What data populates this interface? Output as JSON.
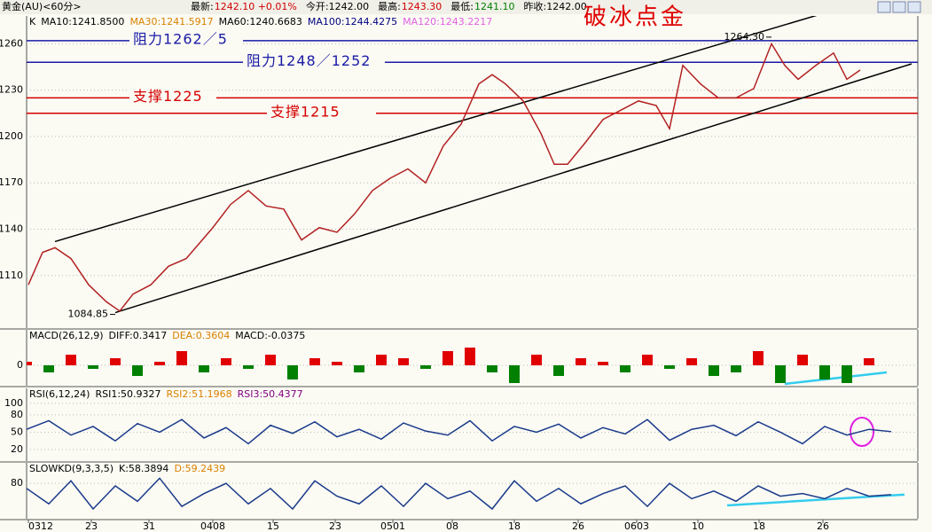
{
  "header": {
    "symbol": "黄金(AU)<60分>",
    "items": [
      {
        "text": "最新:",
        "color": "#000000"
      },
      {
        "text": "1242.10 +0.01%",
        "color": "#d00000"
      },
      {
        "text": "今开:1242.00",
        "color": "#000000"
      },
      {
        "text": "最高:",
        "color": "#000000"
      },
      {
        "text": "1243.30",
        "color": "#d00000"
      },
      {
        "text": "最低:",
        "color": "#000000"
      },
      {
        "text": "1241.10",
        "color": "#008000"
      },
      {
        "text": "昨收:1242.00",
        "color": "#000000"
      }
    ]
  },
  "chart_data": [
    {
      "type": "line",
      "title": "破冰点金",
      "color": "#b22222",
      "labels": [
        {
          "text": "K",
          "color": "#000000"
        },
        {
          "text": "MA10:1241.8500",
          "color": "#000000"
        },
        {
          "text": "MA30:1241.5917",
          "color": "#d98000"
        },
        {
          "text": "MA60:1240.6683",
          "color": "#000000"
        },
        {
          "text": "MA100:1244.4275",
          "color": "#000080"
        },
        {
          "text": "MA120:1243.2217",
          "color": "#e060e0"
        }
      ],
      "x": [
        2,
        18,
        32,
        50,
        70,
        90,
        105,
        120,
        140,
        160,
        180,
        210,
        230,
        250,
        270,
        290,
        310,
        330,
        350,
        370,
        390,
        410,
        430,
        450,
        470,
        490,
        510,
        525,
        540,
        560,
        580,
        595,
        610,
        630,
        650,
        670,
        690,
        710,
        725,
        740,
        760,
        780,
        800,
        820,
        840,
        855,
        870,
        890,
        910,
        925,
        940
      ],
      "values": [
        1104,
        1125,
        1128,
        1121,
        1104,
        1093,
        1087,
        1098,
        1104,
        1116,
        1121,
        1141,
        1156,
        1165,
        1155,
        1153,
        1133,
        1141,
        1138,
        1150,
        1165,
        1173,
        1179,
        1170,
        1194,
        1208,
        1234,
        1240,
        1234,
        1223,
        1202,
        1182,
        1182,
        1196,
        1211,
        1217,
        1223,
        1220,
        1205,
        1246,
        1234,
        1225,
        1225,
        1231,
        1260,
        1246,
        1237,
        1246,
        1254,
        1237,
        1243
      ],
      "xlim": [
        0,
        1000
      ],
      "ylim": [
        1076,
        1278
      ],
      "yticks": [
        1110,
        1140,
        1170,
        1200,
        1230,
        1260
      ],
      "grid": true,
      "xticks": [
        {
          "value": 2,
          "label": "0312"
        },
        {
          "value": 73,
          "label": "23"
        },
        {
          "value": 138,
          "label": "31"
        },
        {
          "value": 210,
          "label": "0408"
        },
        {
          "value": 278,
          "label": "15"
        },
        {
          "value": 348,
          "label": "23"
        },
        {
          "value": 413,
          "label": "0501"
        },
        {
          "value": 480,
          "label": "08"
        },
        {
          "value": 550,
          "label": "18"
        },
        {
          "value": 622,
          "label": "26"
        },
        {
          "value": 688,
          "label": "0603"
        },
        {
          "value": 757,
          "label": "10"
        },
        {
          "value": 826,
          "label": "18"
        },
        {
          "value": 898,
          "label": "26"
        }
      ],
      "hlines": [
        {
          "value": 1262,
          "label": "阻力1262／5",
          "color": "#1a1aa6"
        },
        {
          "value": 1248,
          "label": "阻力1248／1252",
          "color": "#1a1aa6"
        },
        {
          "value": 1225,
          "label": "支撑1225",
          "color": "#d40000"
        },
        {
          "value": 1215,
          "label": "支撑1215",
          "color": "#d40000"
        }
      ],
      "trendlines": [
        {
          "x": [
            32,
            918
          ],
          "values": [
            1132,
            1283
          ],
          "color": "#000000"
        },
        {
          "x": [
            100,
            998
          ],
          "values": [
            1086,
            1247
          ],
          "color": "#000000"
        }
      ],
      "annotations": [
        {
          "x": 840,
          "value": 1264.3,
          "label": "1264.30"
        },
        {
          "x": 100,
          "value": 1084.85,
          "label": "1084.85"
        }
      ]
    },
    {
      "type": "bar",
      "up_color": "#e00000",
      "down_color": "#008000",
      "labels": [
        {
          "text": "MACD(26,12,9)",
          "color": "#000000"
        },
        {
          "text": "DIFF:0.3417",
          "color": "#000000"
        },
        {
          "text": "DEA:0.3604",
          "color": "#d98000"
        },
        {
          "text": "MACD:-0.0375",
          "color": "#000000"
        }
      ],
      "x": [
        0,
        25,
        50,
        75,
        100,
        125,
        150,
        175,
        200,
        225,
        250,
        275,
        300,
        325,
        350,
        375,
        400,
        425,
        450,
        475,
        500,
        525,
        550,
        575,
        600,
        625,
        650,
        675,
        700,
        725,
        750,
        775,
        800,
        825,
        850,
        875,
        900,
        925,
        950,
        975
      ],
      "values": [
        1,
        -2,
        3,
        -1,
        2,
        -3,
        1,
        4,
        -2,
        2,
        -1,
        3,
        -4,
        2,
        1,
        -2,
        3,
        2,
        -1,
        4,
        5,
        -2,
        -5,
        3,
        -3,
        2,
        1,
        -2,
        3,
        -1,
        2,
        -3,
        -2,
        4,
        -5,
        3,
        -4,
        -5,
        2,
        0
      ],
      "xlim": [
        0,
        1000
      ],
      "ylim": [
        -5.75,
        10
      ],
      "yticks": [
        0
      ],
      "grid": true,
      "trendlines": [
        {
          "x": [
            855,
            970
          ],
          "values": [
            -5.25,
            -2
          ],
          "color": "#33ccee"
        }
      ]
    },
    {
      "type": "line",
      "color": "#1a3a8a",
      "labels": [
        {
          "text": "RSI(6,12,24)",
          "color": "#000000"
        },
        {
          "text": "RSI1:50.9327",
          "color": "#000000"
        },
        {
          "text": "RSI2:51.1968",
          "color": "#d98000"
        },
        {
          "text": "RSI3:50.4377",
          "color": "#800080"
        }
      ],
      "x": [
        0,
        25,
        50,
        75,
        100,
        125,
        150,
        175,
        200,
        225,
        250,
        275,
        300,
        325,
        350,
        375,
        400,
        425,
        450,
        475,
        500,
        525,
        550,
        575,
        600,
        625,
        650,
        675,
        700,
        725,
        750,
        775,
        800,
        825,
        850,
        875,
        900,
        925,
        950,
        975
      ],
      "values": [
        55,
        70,
        45,
        60,
        35,
        65,
        50,
        72,
        40,
        58,
        30,
        62,
        48,
        68,
        42,
        55,
        38,
        66,
        52,
        45,
        70,
        35,
        60,
        50,
        64,
        40,
        58,
        47,
        72,
        36,
        55,
        62,
        44,
        68,
        50,
        30,
        60,
        45,
        55,
        51
      ],
      "xlim": [
        0,
        1000
      ],
      "ylim": [
        0,
        126
      ],
      "yticks": [
        20,
        50,
        80,
        100
      ],
      "grid": true
    },
    {
      "type": "line",
      "color": "#1a3a8a",
      "labels": [
        {
          "text": "SLOWKD(9,3,3,5)",
          "color": "#000000"
        },
        {
          "text": "K:58.3894",
          "color": "#000000"
        },
        {
          "text": "D:59.2439",
          "color": "#d98000"
        }
      ],
      "x": [
        0,
        25,
        50,
        75,
        100,
        125,
        150,
        175,
        200,
        225,
        250,
        275,
        300,
        325,
        350,
        375,
        400,
        425,
        450,
        475,
        500,
        525,
        550,
        575,
        600,
        625,
        650,
        675,
        700,
        725,
        750,
        775,
        800,
        825,
        850,
        875,
        900,
        925,
        950,
        975
      ],
      "values": [
        70,
        40,
        85,
        30,
        75,
        45,
        90,
        35,
        60,
        80,
        40,
        70,
        30,
        85,
        55,
        40,
        75,
        35,
        80,
        50,
        65,
        30,
        85,
        45,
        70,
        40,
        60,
        75,
        35,
        80,
        50,
        65,
        45,
        75,
        55,
        60,
        50,
        70,
        55,
        58
      ],
      "xlim": [
        0,
        1000
      ],
      "ylim": [
        11,
        120
      ],
      "yticks": [
        80
      ],
      "grid": true,
      "trendlines": [
        {
          "x": [
            790,
            990
          ],
          "values": [
            37,
            58
          ],
          "color": "#33ccee"
        }
      ]
    }
  ]
}
